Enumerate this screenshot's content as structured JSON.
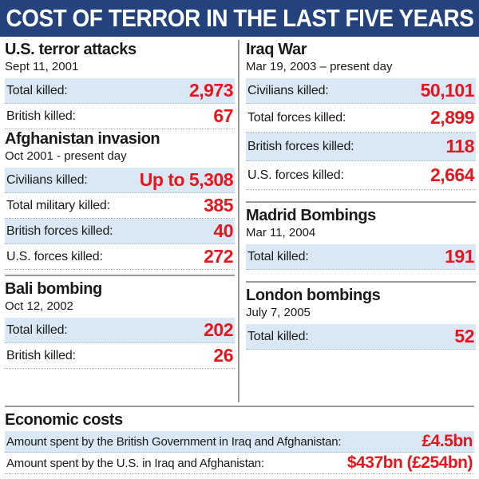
{
  "title": "COST OF TERROR IN THE LAST FIVE YEARS",
  "us_attacks": {
    "title": "U.S. terror attacks",
    "date": "Sept 11, 2001",
    "rows": [
      {
        "label": "Total killed:",
        "value": "2,973"
      },
      {
        "label": "British killed:",
        "value": "67"
      }
    ]
  },
  "afghanistan": {
    "title": "Afghanistan invasion",
    "date": "Oct 2001 - present day",
    "rows": [
      {
        "label": "Civilians killed:",
        "value": "Up to 5,308"
      },
      {
        "label": "Total military killed:",
        "value": "385"
      },
      {
        "label": "British forces killed:",
        "value": "40"
      },
      {
        "label": "U.S. forces killed:",
        "value": "272"
      }
    ]
  },
  "bali": {
    "title": "Bali bombing",
    "date": "Oct 12, 2002",
    "rows": [
      {
        "label": "Total killed:",
        "value": "202"
      },
      {
        "label": "British killed:",
        "value": "26"
      }
    ]
  },
  "iraq": {
    "title": "Iraq War",
    "date": "Mar 19, 2003 – present day",
    "rows": [
      {
        "label": "Civilians killed:",
        "value": "50,101"
      },
      {
        "label": "Total forces killed:",
        "value": "2,899"
      },
      {
        "label": "British forces killed:",
        "value": "118"
      },
      {
        "label": "U.S. forces killed:",
        "value": "2,664"
      }
    ]
  },
  "madrid": {
    "title": "Madrid Bombings",
    "date": "Mar 11, 2004",
    "rows": [
      {
        "label": "Total killed:",
        "value": "191"
      }
    ]
  },
  "london": {
    "title": "London bombings",
    "date": "July 7, 2005",
    "rows": [
      {
        "label": "Total killed:",
        "value": "52"
      }
    ]
  },
  "economic": {
    "title": "Economic costs",
    "rows": [
      {
        "label": "Amount spent by the British Government in Iraq and Afghanistan:",
        "value": "£4.5bn"
      },
      {
        "label": "Amount spent by the U.S. in Iraq and Afghanistan:",
        "value": "$437bn (£254bn)"
      }
    ]
  },
  "colors": {
    "header_bg": "#24437c",
    "value_red": "#e5161d",
    "row_shade": "#d9e8f4"
  }
}
